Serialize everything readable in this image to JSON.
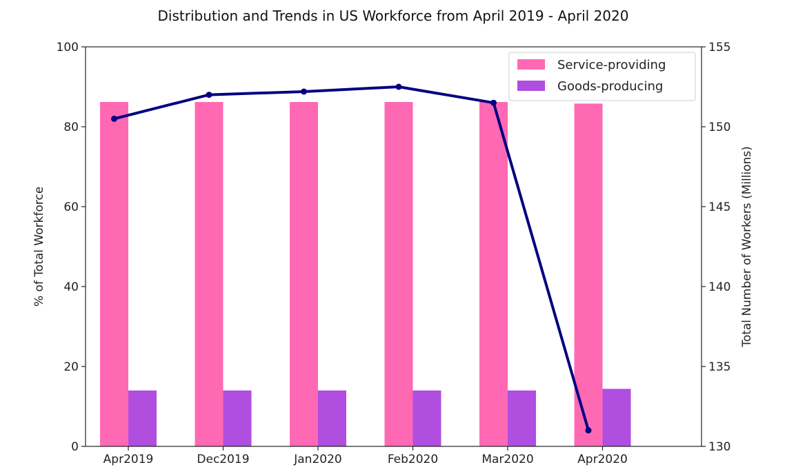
{
  "chart_data": {
    "type": "bar",
    "title": "Distribution and Trends in US Workforce from April 2019 - April 2020",
    "categories": [
      "Apr2019",
      "Dec2019",
      "Jan2020",
      "Feb2020",
      "Mar2020",
      "Apr2020"
    ],
    "ylabel_left": "% of Total Workforce",
    "ylabel_right": "Total Number of Workers (Millions)",
    "ylim_left": [
      0,
      100
    ],
    "ylim_right": [
      130,
      155
    ],
    "yticks_left": [
      0,
      20,
      40,
      60,
      80,
      100
    ],
    "yticks_right": [
      130,
      135,
      140,
      145,
      150,
      155
    ],
    "grid": false,
    "legend_position": "top-right",
    "series": [
      {
        "name": "Service-providing",
        "type": "bar",
        "axis": "left",
        "color": "#ff69b4",
        "values": [
          86.2,
          86.2,
          86.2,
          86.2,
          86.2,
          85.8
        ]
      },
      {
        "name": "Goods-producing",
        "type": "bar",
        "axis": "left",
        "color": "#b04ee0",
        "values": [
          14.0,
          14.0,
          14.0,
          14.0,
          14.0,
          14.4
        ]
      },
      {
        "type": "line",
        "axis": "right",
        "color": "#000080",
        "values": [
          150.5,
          152.0,
          152.2,
          152.5,
          151.5,
          131.0
        ]
      }
    ]
  }
}
